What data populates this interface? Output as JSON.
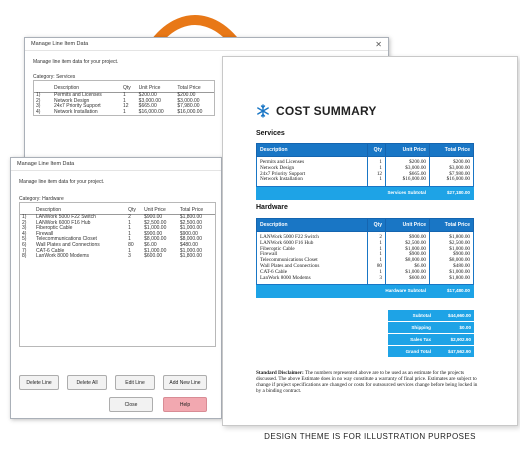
{
  "dialog_services": {
    "title": "Manage Line Item Data",
    "intro": "Manage line item data for your project.",
    "category": "Category: Services",
    "columns": [
      "Description",
      "Qty",
      "Unit Price",
      "Total Price"
    ],
    "rows": [
      [
        "1)",
        "Permits and Licenses",
        "1",
        "$200.00",
        "$200.00"
      ],
      [
        "2)",
        "Network Design",
        "1",
        "$3,000.00",
        "$3,000.00"
      ],
      [
        "3)",
        "24x7 Priority Support",
        "12",
        "$665.00",
        "$7,980.00"
      ],
      [
        "4)",
        "Network Installation",
        "1",
        "$16,000.00",
        "$16,000.00"
      ]
    ]
  },
  "dialog_hardware": {
    "title": "Manage Line Item Data",
    "intro": "Manage line item data for your project.",
    "category": "Category: Hardware",
    "columns": [
      "Description",
      "Qty",
      "Unit Price",
      "Total Price"
    ],
    "rows": [
      [
        "1)",
        "LANWork 5000 F22 Switch",
        "2",
        "$900.00",
        "$1,800.00"
      ],
      [
        "2)",
        "LANWork 6000 F16 Hub",
        "1",
        "$2,500.00",
        "$2,500.00"
      ],
      [
        "3)",
        "Fiberoptic Cable",
        "1",
        "$1,000.00",
        "$1,000.00"
      ],
      [
        "4)",
        "Firewall",
        "1",
        "$900.00",
        "$900.00"
      ],
      [
        "5)",
        "Telecommunications Closet",
        "1",
        "$8,000.00",
        "$8,000.00"
      ],
      [
        "6)",
        "Wall Plates and Connections",
        "80",
        "$6.00",
        "$480.00"
      ],
      [
        "7)",
        "CAT-6 Cable",
        "1",
        "$1,000.00",
        "$1,000.00"
      ],
      [
        "8)",
        "LanWork 8000 Modems",
        "3",
        "$600.00",
        "$1,800.00"
      ]
    ],
    "buttons": {
      "delete_line": "Delete Line",
      "delete_all": "Delete All",
      "edit_line": "Edit Line",
      "add_new_line": "Add New Line",
      "close": "Close",
      "help": "Help"
    }
  },
  "document": {
    "title": "COST SUMMARY",
    "services": {
      "heading": "Services",
      "columns": [
        "Description",
        "Qty",
        "Unit Price",
        "Total Price"
      ],
      "rows": [
        [
          "Permits and Licenses",
          "1",
          "$200.00",
          "$200.00"
        ],
        [
          "Network Design",
          "1",
          "$3,000.00",
          "$3,000.00"
        ],
        [
          "24x7 Priority Support",
          "12",
          "$665.00",
          "$7,980.00"
        ],
        [
          "Network Installation",
          "1",
          "$16,000.00",
          "$16,000.00"
        ]
      ],
      "subtotal_label": "Services Subtotal",
      "subtotal_value": "$27,180.00"
    },
    "hardware": {
      "heading": "Hardware",
      "columns": [
        "Description",
        "Qty",
        "Unit Price",
        "Total Price"
      ],
      "rows": [
        [
          "LANWork 5000 F22 Switch",
          "2",
          "$900.00",
          "$1,800.00"
        ],
        [
          "LANWork 6000 F16 Hub",
          "1",
          "$2,500.00",
          "$2,500.00"
        ],
        [
          "Fiberoptic Cable",
          "1",
          "$1,000.00",
          "$1,000.00"
        ],
        [
          "Firewall",
          "1",
          "$900.00",
          "$900.00"
        ],
        [
          "Telecommunications Closet",
          "1",
          "$8,000.00",
          "$8,000.00"
        ],
        [
          "Wall Plates and Connections",
          "80",
          "$6.00",
          "$480.00"
        ],
        [
          "CAT-6 Cable",
          "1",
          "$1,000.00",
          "$1,000.00"
        ],
        [
          "LanWork 8000 Modems",
          "3",
          "$600.00",
          "$1,800.00"
        ]
      ],
      "subtotal_label": "Hardware Subtotal",
      "subtotal_value": "$17,480.00"
    },
    "totals": [
      [
        "Subtotal",
        "$44,660.00"
      ],
      [
        "Shipping",
        "$0.00"
      ],
      [
        "Sales Tax",
        "$2,902.90"
      ],
      [
        "Grand Total",
        "$47,562.90"
      ]
    ],
    "disclaimer_label": "Standard Disclaimer:",
    "disclaimer_text": " The numbers represented above are to be used as an estimate for the projects discussed. The above Estimate does in no way constitute a warranty of final price. Estimates are subject to change if project specifications are changed or costs for outsourced services change before being locked in by a binding contract."
  },
  "caption": "DESIGN THEME IS FOR ILLUSTRATION PURPOSES",
  "colors": {
    "accent": "#e87817",
    "table_header": "#1976c5",
    "subtotal": "#1ea3e6"
  },
  "icons": {
    "logo": "snowflake-icon",
    "close": "close-icon",
    "arrow": "curved-arrow"
  }
}
